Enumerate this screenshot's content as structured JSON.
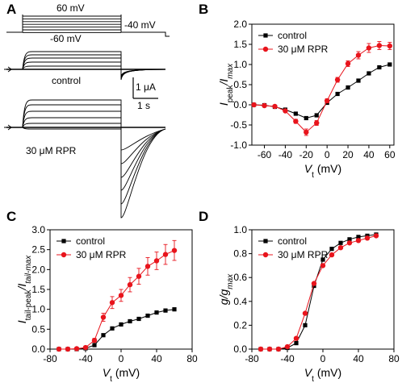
{
  "panel_labels": {
    "a": "A",
    "b": "B",
    "c": "C",
    "d": "D"
  },
  "traces": {
    "protocol": {
      "top_voltage": "60 mV",
      "bottom_voltage": "-60 mV",
      "tail_voltage": "-40 mV"
    },
    "control_label": "control",
    "rpr_label": "30 μM RPR",
    "scale_current": "1 μA",
    "scale_time": "1 s"
  },
  "colors": {
    "control": "#000000",
    "rpr": "#e8141c"
  },
  "chart_data": [
    {
      "id": "B",
      "type": "line",
      "ylabel_main": "I",
      "ylabel_sub1": "peak",
      "ylabel_mid": "/I",
      "ylabel_sub2": "max",
      "xlabel_main": "V",
      "xlabel_sub": "t",
      "xlabel_unit": " (mV)",
      "xlim": [
        -72,
        64
      ],
      "ylim": [
        -1.0,
        2.0
      ],
      "xticks": [
        -60,
        -40,
        -20,
        0,
        20,
        40,
        60
      ],
      "yticks": [
        -1.0,
        -0.5,
        0.0,
        0.5,
        1.0,
        1.5,
        2.0
      ],
      "ytick_labels": [
        "-1.0",
        "-0.5",
        "0.0",
        "0.5",
        "1.0",
        "1.5",
        "2.0"
      ],
      "legend_position": "top-left",
      "series": [
        {
          "name": "control",
          "color": "#000000",
          "marker": "square",
          "x": [
            -70,
            -60,
            -50,
            -40,
            -30,
            -20,
            -10,
            0,
            10,
            20,
            30,
            40,
            50,
            60
          ],
          "y": [
            0.0,
            -0.01,
            -0.05,
            -0.12,
            -0.22,
            -0.33,
            -0.26,
            0.05,
            0.27,
            0.43,
            0.6,
            0.78,
            0.93,
            1.0
          ],
          "err": [
            0,
            0,
            0,
            0,
            0,
            0,
            0,
            0,
            0,
            0,
            0,
            0,
            0,
            0
          ]
        },
        {
          "name": "30 μM RPR",
          "color": "#e8141c",
          "marker": "circle",
          "x": [
            -70,
            -60,
            -50,
            -40,
            -30,
            -20,
            -10,
            0,
            10,
            20,
            30,
            40,
            50,
            60
          ],
          "y": [
            0.0,
            -0.02,
            -0.04,
            -0.15,
            -0.41,
            -0.68,
            -0.45,
            0.1,
            0.62,
            1.02,
            1.23,
            1.41,
            1.47,
            1.46
          ],
          "err": [
            0,
            0,
            0,
            0.03,
            0.05,
            0.08,
            0.06,
            0.05,
            0.06,
            0.07,
            0.09,
            0.11,
            0.1,
            0.09
          ]
        }
      ]
    },
    {
      "id": "C",
      "type": "line",
      "ylabel_main": "I",
      "ylabel_sub1": "tail-peak",
      "ylabel_mid": "/I",
      "ylabel_sub2": "tail-max",
      "xlabel_main": "V",
      "xlabel_sub": "t",
      "xlabel_unit": " (mV)",
      "xlim": [
        -80,
        80
      ],
      "ylim": [
        0.0,
        3.0
      ],
      "xticks": [
        -80,
        -40,
        0,
        40,
        80
      ],
      "yticks": [
        0.0,
        0.5,
        1.0,
        1.5,
        2.0,
        2.5,
        3.0
      ],
      "ytick_labels": [
        "0.0",
        "0.5",
        "1.0",
        "1.5",
        "2.0",
        "2.5",
        "3.0"
      ],
      "legend_position": "top-left",
      "series": [
        {
          "name": "control",
          "color": "#000000",
          "marker": "square",
          "x": [
            -70,
            -60,
            -50,
            -40,
            -30,
            -20,
            -10,
            0,
            10,
            20,
            30,
            40,
            50,
            60
          ],
          "y": [
            0.0,
            0.0,
            0.0,
            0.02,
            0.1,
            0.35,
            0.52,
            0.62,
            0.7,
            0.76,
            0.84,
            0.92,
            0.97,
            1.0
          ],
          "err": [
            0,
            0,
            0,
            0,
            0,
            0,
            0,
            0,
            0,
            0,
            0,
            0,
            0,
            0
          ]
        },
        {
          "name": "30 μM RPR",
          "color": "#e8141c",
          "marker": "circle",
          "x": [
            -70,
            -60,
            -50,
            -40,
            -30,
            -20,
            -10,
            0,
            10,
            20,
            30,
            40,
            50,
            60
          ],
          "y": [
            0.0,
            0.0,
            0.01,
            0.04,
            0.22,
            0.8,
            1.17,
            1.35,
            1.62,
            1.83,
            2.08,
            2.22,
            2.38,
            2.48
          ],
          "err": [
            0,
            0,
            0,
            0,
            0.05,
            0.1,
            0.15,
            0.15,
            0.18,
            0.2,
            0.22,
            0.22,
            0.25,
            0.25
          ]
        }
      ]
    },
    {
      "id": "D",
      "type": "line",
      "ylabel_main": "g/g",
      "ylabel_sub2": "max",
      "xlabel_main": "V",
      "xlabel_sub": "t",
      "xlabel_unit": " (mV)",
      "xlim": [
        -80,
        80
      ],
      "ylim": [
        0.0,
        1.0
      ],
      "xticks": [
        -80,
        -40,
        0,
        40,
        80
      ],
      "yticks": [
        0.0,
        0.2,
        0.4,
        0.6,
        0.8,
        1.0
      ],
      "ytick_labels": [
        "0.0",
        "0.2",
        "0.4",
        "0.6",
        "0.8",
        "1.0"
      ],
      "legend_position": "top-left",
      "series": [
        {
          "name": "control",
          "color": "#000000",
          "marker": "square",
          "x": [
            -70,
            -60,
            -50,
            -40,
            -30,
            -20,
            -10,
            0,
            10,
            20,
            30,
            40,
            50,
            60
          ],
          "y": [
            0.0,
            0.0,
            0.0,
            0.01,
            0.05,
            0.2,
            0.53,
            0.75,
            0.84,
            0.89,
            0.92,
            0.94,
            0.95,
            0.96
          ],
          "err": [
            0,
            0,
            0,
            0,
            0,
            0,
            0,
            0,
            0,
            0,
            0,
            0,
            0,
            0
          ]
        },
        {
          "name": "30 μM RPR",
          "color": "#e8141c",
          "marker": "circle",
          "x": [
            -70,
            -60,
            -50,
            -40,
            -30,
            -20,
            -10,
            0,
            10,
            20,
            30,
            40,
            50,
            60
          ],
          "y": [
            0.0,
            0.0,
            0.0,
            0.02,
            0.09,
            0.3,
            0.55,
            0.7,
            0.79,
            0.85,
            0.89,
            0.91,
            0.93,
            0.95
          ],
          "err": [
            0,
            0,
            0,
            0,
            0,
            0,
            0,
            0,
            0,
            0,
            0,
            0,
            0,
            0
          ]
        }
      ]
    }
  ]
}
